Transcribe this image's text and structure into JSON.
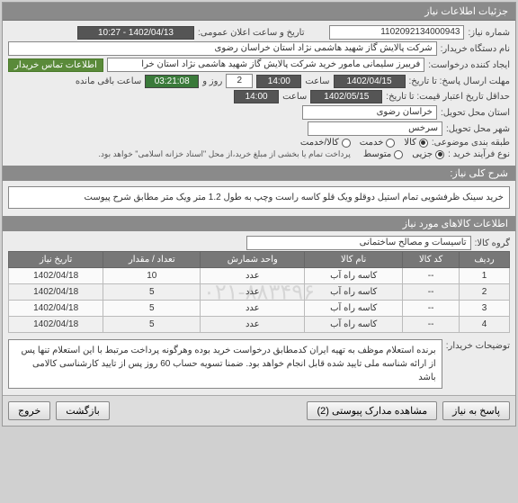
{
  "headers": {
    "main": "جزئیات اطلاعات نیاز",
    "general_desc": "شرح کلی نیاز:",
    "items_info": "اطلاعات کالاهای مورد نیاز",
    "buyer_notes_label": "توضیحات خریدار:"
  },
  "labels": {
    "need_no": "شماره نیاز:",
    "announce_datetime": "تاریخ و ساعت اعلان عمومی:",
    "buyer_org": "نام دستگاه خریدار:",
    "creator": "ایجاد کننده درخواست:",
    "deadline_send": "مهلت ارسال پاسخ: تا تاریخ:",
    "hour1": "ساعت",
    "day_rem": "روز و",
    "time_rem": "ساعت باقی مانده",
    "validity": "حداقل تاریخ اعتبار قیمت: تا تاریخ:",
    "hour2": "ساعت",
    "province": "استان محل تحویل:",
    "city": "شهر محل تحویل:",
    "segment": "طبقه بندی موضوعی:",
    "goods": "کالا",
    "service": "خدمت",
    "goods_service": "کالا/خدمت",
    "purchase_type": "نوع فرآیند خرید :",
    "purchase_note": "پرداخت تمام یا بخشی از مبلغ خرید،از محل \"اسناد خزانه اسلامی\" خواهد بود.",
    "medium": "متوسط",
    "minor": "جزیی",
    "goods_group": "گروه کالا:",
    "contact_badge": "اطلاعات تماس خریدار"
  },
  "fields": {
    "need_no": "1102092134000943",
    "announce": "1402/04/13 - 10:27",
    "buyer_org": "شرکت پالایش گاز شهید هاشمی نژاد   استان خراسان رضوی",
    "creator": "فریبرز  سلیمانی مامور خرید شرکت پالایش گاز شهید هاشمی نژاد   استان خرا",
    "deadline_date": "1402/04/15",
    "deadline_hour": "14:00",
    "days_remaining": "2",
    "time_remaining": "03:21:08",
    "validity_date": "1402/05/15",
    "validity_hour": "14:00",
    "province": "خراسان رضوی",
    "city": "سرخس",
    "goods_group": "تاسیسات و مصالح ساختمانی",
    "description": "خرید سینک ظرفشویی تمام استیل  دوقلو ویک قلو کاسه راست وچپ  به طول 1.2 متر ویک متر مطابق شرح پیوست",
    "buyer_notes": "برنده استعلام موظف به تهیه ایران کدمطابق درخواست خرید بوده وهرگونه پرداخت مرتبط با این استعلام تنها پس از ارائه شناسه ملی تایید شده قابل انجام خواهد بود. ضمنا تسویه حساب 60 روز پس از تایید کارشناسی کالامی باشد"
  },
  "table": {
    "columns": [
      "ردیف",
      "کد کالا",
      "نام کالا",
      "واحد شمارش",
      "تعداد / مقدار",
      "تاریخ نیاز"
    ],
    "rows": [
      [
        "1",
        "--",
        "کاسه راه آب",
        "عدد",
        "10",
        "1402/04/18"
      ],
      [
        "2",
        "--",
        "کاسه راه آب",
        "عدد",
        "5",
        "1402/04/18"
      ],
      [
        "3",
        "--",
        "کاسه راه آب",
        "عدد",
        "5",
        "1402/04/18"
      ],
      [
        "4",
        "--",
        "کاسه راه آب",
        "عدد",
        "5",
        "1402/04/18"
      ]
    ],
    "watermark": "۰۲۱-۸۸۳۴۹۶"
  },
  "buttons": {
    "respond": "پاسخ به نیاز",
    "attachments": "مشاهده مدارک پیوستی (2)",
    "back": "بازگشت",
    "exit": "خروج"
  }
}
